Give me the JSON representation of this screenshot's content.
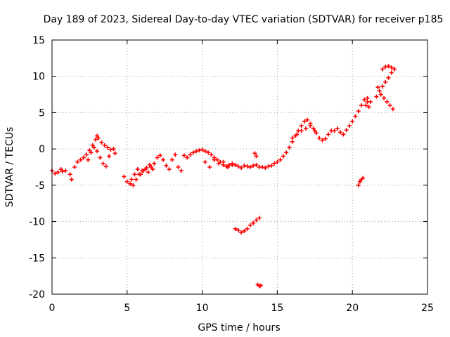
{
  "chart_data": {
    "type": "scatter",
    "title": "Day 189 of 2023, Sidereal Day-to-day VTEC variation (SDTVAR) for receiver p185",
    "xlabel": "GPS time / hours",
    "ylabel": "SDTVAR / TECUs",
    "xlim": [
      0,
      25
    ],
    "ylim": [
      -20,
      15
    ],
    "xticks": [
      "0",
      "5",
      "10",
      "15",
      "20",
      "25"
    ],
    "yticks": [
      "15",
      "10",
      "5",
      "0",
      "-5",
      "-10",
      "-15",
      "-20"
    ],
    "grid": true,
    "marker": "+",
    "color": "#ff0000",
    "series": [
      {
        "x": [
          0.0,
          0.2,
          0.4,
          0.6,
          0.7,
          0.9,
          1.2,
          1.3,
          1.5,
          1.7,
          1.9,
          2.1,
          2.3,
          2.5,
          2.7,
          2.9,
          3.0,
          3.1,
          3.3,
          3.5,
          3.7,
          3.9,
          4.1,
          4.2,
          2.4,
          2.6,
          2.8,
          3.0,
          3.2,
          3.4,
          3.6,
          3.8,
          4.8,
          5.0,
          5.2,
          5.4,
          5.6,
          5.8,
          6.0,
          6.2,
          6.4,
          6.6,
          6.8,
          7.0,
          7.2,
          7.4,
          7.6,
          7.8,
          8.0,
          8.2,
          8.4,
          8.6,
          8.8,
          5.3,
          5.5,
          5.7,
          5.9,
          6.1,
          6.3,
          6.5,
          6.7,
          9.0,
          9.2,
          9.4,
          9.6,
          9.8,
          10.0,
          10.2,
          10.4,
          10.6,
          10.8,
          11.0,
          11.2,
          11.4,
          11.6,
          11.8,
          12.0,
          12.2,
          12.4,
          12.6,
          12.8,
          13.0,
          13.2,
          13.4,
          13.6,
          13.8,
          10.2,
          10.5,
          10.8,
          11.1,
          11.4,
          11.7,
          12.0,
          12.2,
          12.4,
          12.6,
          12.8,
          13.0,
          13.2,
          13.4,
          13.6,
          13.8,
          13.7,
          13.8,
          13.9,
          13.5,
          13.6,
          14.0,
          14.2,
          14.4,
          14.6,
          14.8,
          15.0,
          15.2,
          15.4,
          15.6,
          15.8,
          16.0,
          16.2,
          16.4,
          16.6,
          16.8,
          17.0,
          17.2,
          17.4,
          17.6,
          17.8,
          18.0,
          18.2,
          18.4,
          18.6,
          16.0,
          16.3,
          16.6,
          16.9,
          17.2,
          17.5,
          18.8,
          19.0,
          19.2,
          19.4,
          19.6,
          19.8,
          20.0,
          20.2,
          20.4,
          20.6,
          20.8,
          21.0,
          21.2,
          20.9,
          21.0,
          21.1,
          20.4,
          20.5,
          20.6,
          20.7,
          21.6,
          21.8,
          22.0,
          22.2,
          22.4,
          22.6,
          22.8,
          22.0,
          22.2,
          22.4,
          22.6,
          22.8,
          21.7,
          21.9,
          22.1,
          22.3,
          22.5,
          22.7
        ],
        "y": [
          -3.0,
          -3.4,
          -3.2,
          -2.8,
          -3.1,
          -3.0,
          -3.5,
          -4.2,
          -2.5,
          -1.8,
          -1.5,
          -1.2,
          -0.8,
          -0.2,
          0.5,
          1.3,
          1.8,
          1.5,
          0.9,
          0.5,
          0.2,
          -0.1,
          0.0,
          -0.6,
          -1.5,
          -0.5,
          0.2,
          -0.3,
          -1.2,
          -2.0,
          -2.4,
          -1.0,
          -3.8,
          -4.5,
          -4.8,
          -5.0,
          -4.2,
          -3.5,
          -3.0,
          -2.8,
          -3.2,
          -2.5,
          -2.0,
          -1.2,
          -0.9,
          -1.5,
          -2.3,
          -2.8,
          -1.5,
          -0.8,
          -2.5,
          -3.0,
          -0.9,
          -4.2,
          -3.5,
          -2.8,
          -3.5,
          -3.0,
          -2.6,
          -2.2,
          -2.8,
          -1.2,
          -0.8,
          -0.5,
          -0.3,
          -0.2,
          -0.1,
          -0.3,
          -0.5,
          -0.8,
          -1.2,
          -1.5,
          -1.8,
          -2.2,
          -2.4,
          -2.2,
          -2.0,
          -2.2,
          -2.4,
          -2.6,
          -2.3,
          -2.4,
          -2.5,
          -2.3,
          -2.2,
          -2.5,
          -1.8,
          -2.5,
          -1.5,
          -2.0,
          -1.8,
          -2.5,
          -2.2,
          -11.0,
          -11.2,
          -11.5,
          -11.3,
          -11.0,
          -10.5,
          -10.2,
          -9.8,
          -9.5,
          -18.7,
          -18.9,
          -18.8,
          -0.6,
          -1.0,
          -2.5,
          -2.6,
          -2.4,
          -2.3,
          -2.0,
          -1.8,
          -1.5,
          -1.0,
          -0.5,
          0.2,
          1.0,
          1.8,
          2.5,
          3.2,
          3.8,
          4.0,
          3.5,
          2.8,
          2.2,
          1.5,
          1.2,
          1.4,
          2.0,
          2.5,
          1.5,
          2.0,
          2.5,
          2.8,
          3.2,
          2.5,
          2.5,
          2.8,
          2.3,
          2.0,
          2.6,
          3.2,
          3.8,
          4.5,
          5.2,
          6.0,
          6.8,
          7.0,
          6.5,
          6.0,
          6.5,
          5.8,
          -5.0,
          -4.5,
          -4.2,
          -4.0,
          7.2,
          8.0,
          8.6,
          9.2,
          9.8,
          10.5,
          11.0,
          11.0,
          11.3,
          11.4,
          11.2,
          11.0,
          8.5,
          7.5,
          7.0,
          6.5,
          6.0,
          5.5
        ]
      }
    ]
  }
}
